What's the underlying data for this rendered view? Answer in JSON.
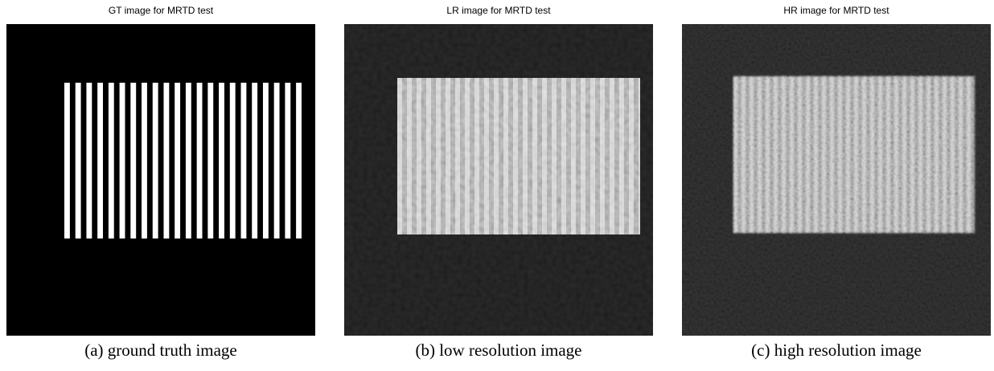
{
  "panels": [
    {
      "title": "GT image for MRTD test",
      "caption": "(a) ground truth image"
    },
    {
      "title": "LR image for MRTD test",
      "caption": "(b) low resolution image"
    },
    {
      "title": "HR image for MRTD test",
      "caption": "(c) high resolution image"
    }
  ]
}
